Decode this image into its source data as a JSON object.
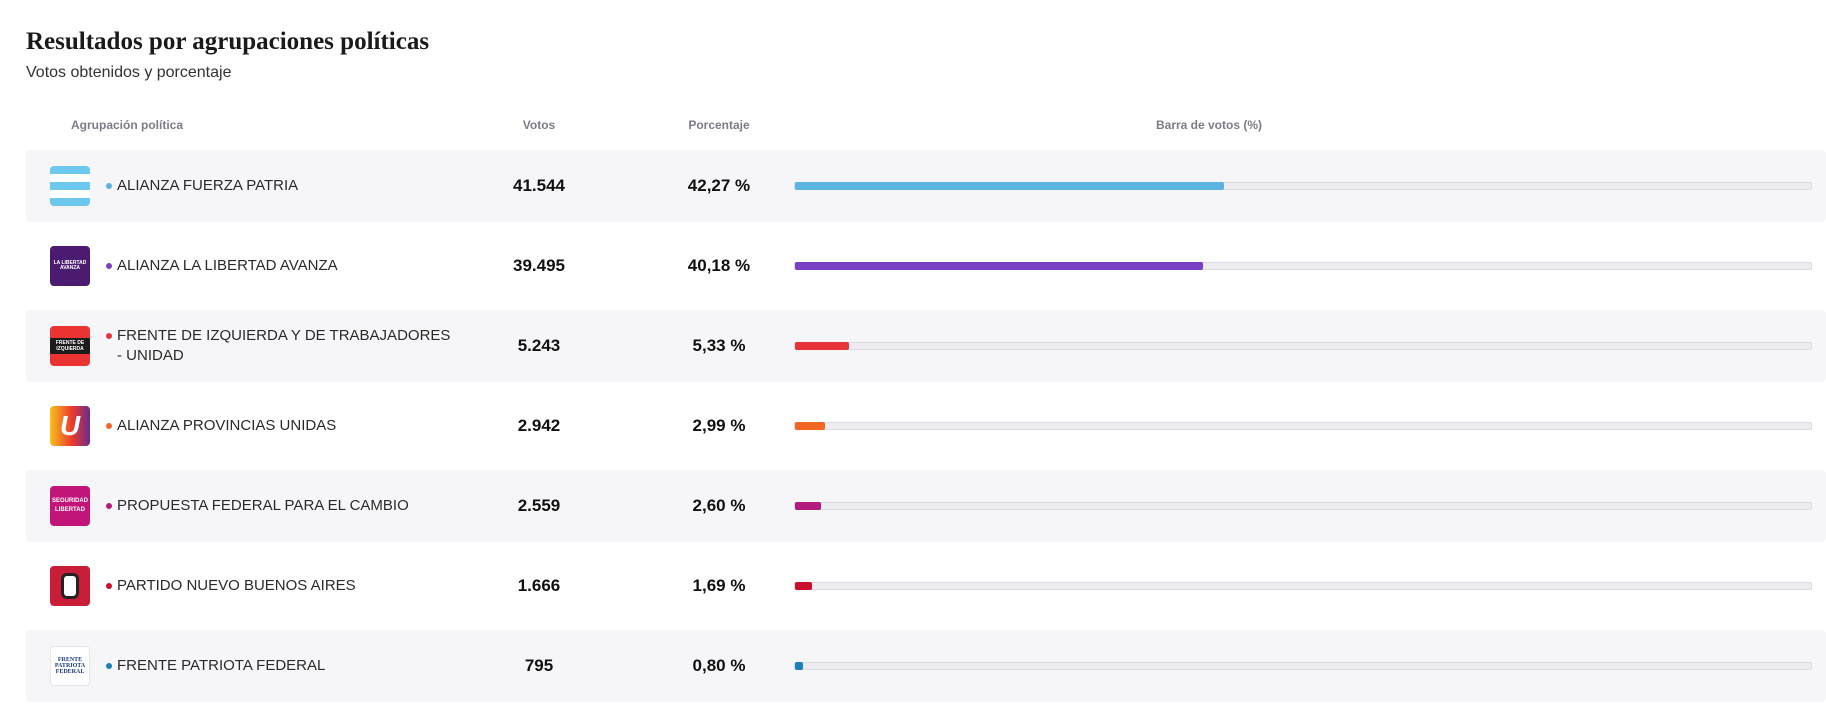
{
  "header": {
    "title": "Resultados por agrupaciones políticas",
    "subtitle": "Votos obtenidos y porcentaje"
  },
  "columns": {
    "party": "Agrupación política",
    "votes": "Votos",
    "percent": "Porcentaje",
    "bar": "Barra de votos (%)"
  },
  "rows": [
    {
      "name": "ALIANZA FUERZA PATRIA",
      "votes": "41.544",
      "percent": "42,27 %",
      "share": 0.4227,
      "color": "#5ab4e0",
      "logo": "argentina-flag-icon",
      "logo_text": ""
    },
    {
      "name": "ALIANZA LA LIBERTAD AVANZA",
      "votes": "39.495",
      "percent": "40,18 %",
      "share": 0.4018,
      "color": "#7a3fc4",
      "logo": "libertad-avanza-logo",
      "logo_text": "LA LIBERTAD AVANZA"
    },
    {
      "name": "FRENTE DE IZQUIERDA Y DE TRABAJADORES - UNIDAD",
      "votes": "5.243",
      "percent": "5,33 %",
      "share": 0.0533,
      "color": "#e8333a",
      "logo": "frente-izquierda-logo",
      "logo_text": "FRENTE DE IZQUIERDA"
    },
    {
      "name": "ALIANZA PROVINCIAS UNIDAS",
      "votes": "2.942",
      "percent": "2,99 %",
      "share": 0.0299,
      "color": "#f26522",
      "logo": "provincias-unidas-logo",
      "logo_text": "U"
    },
    {
      "name": "PROPUESTA FEDERAL PARA EL CAMBIO",
      "votes": "2.559",
      "percent": "2,60 %",
      "share": 0.026,
      "color": "#b41b7e",
      "logo": "seguridad-libertad-logo",
      "logo_text": "SEGURIDAD LIBERTAD"
    },
    {
      "name": "PARTIDO NUEVO BUENOS AIRES",
      "votes": "1.666",
      "percent": "1,69 %",
      "share": 0.0169,
      "color": "#c8102e",
      "logo": "nuevo-buenos-aires-logo",
      "logo_text": ""
    },
    {
      "name": "FRENTE PATRIOTA FEDERAL",
      "votes": "795",
      "percent": "0,80 %",
      "share": 0.008,
      "color": "#1e7fbf",
      "logo": "frente-patriota-logo",
      "logo_text": "FRENTE PATRIOTA FEDERAL"
    }
  ]
}
